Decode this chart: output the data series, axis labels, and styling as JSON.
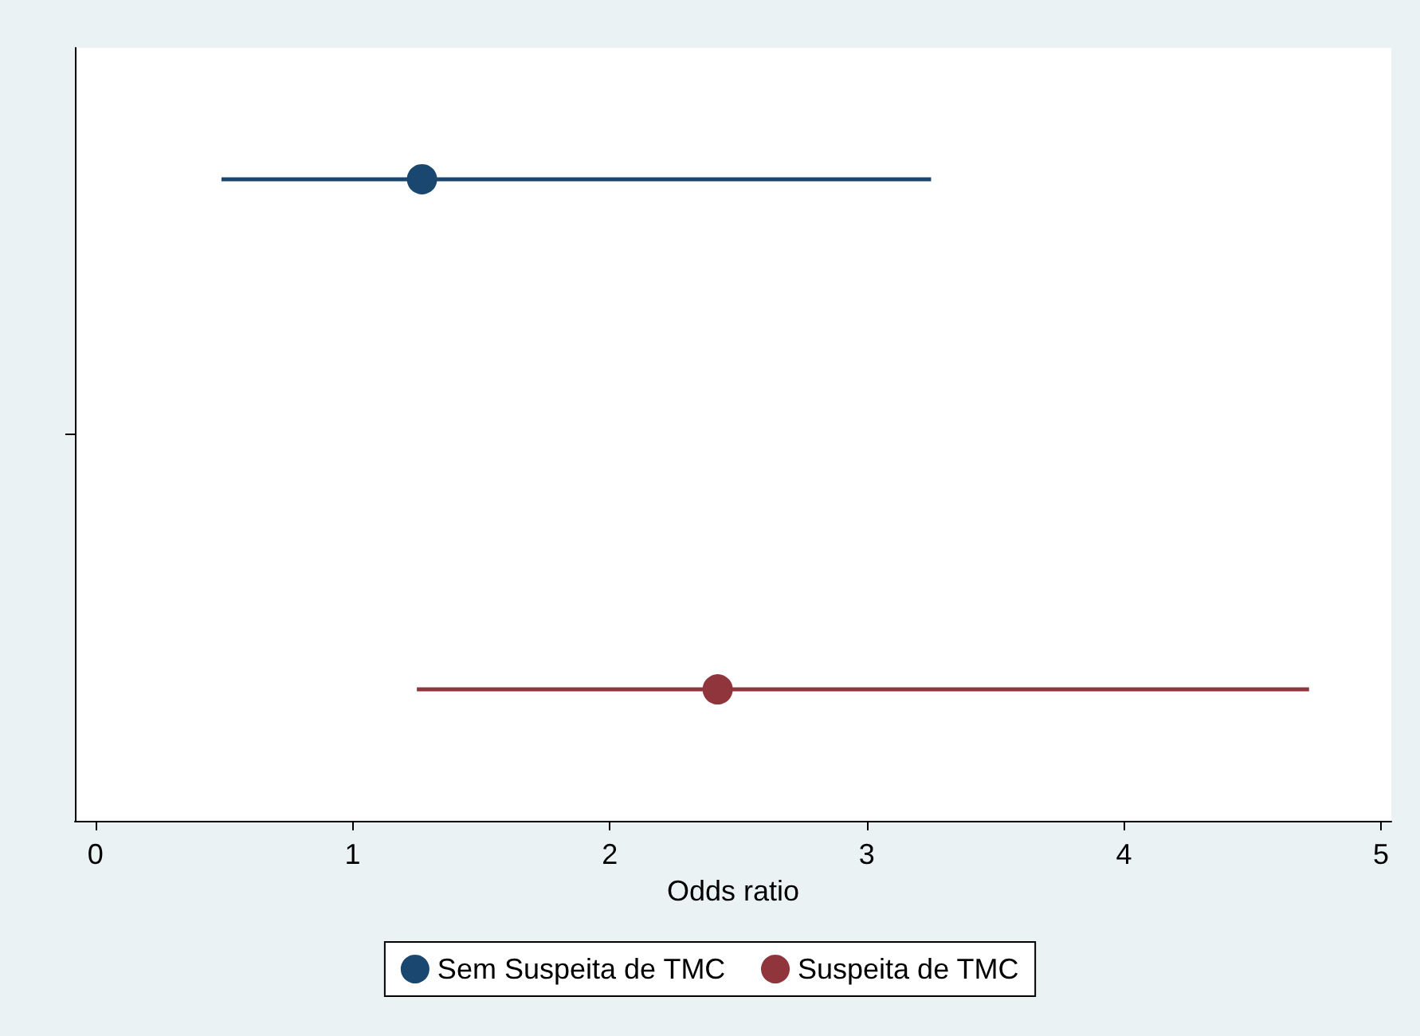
{
  "chart_data": {
    "type": "scatter",
    "orientation": "horizontal",
    "xlabel": "Odds ratio",
    "categories": [
      null
    ],
    "series": [
      {
        "name": "Sem Suspeita de TMC",
        "color": "#1a476f",
        "values": [
          1.27
        ],
        "errors": [
          [
            0.49,
            3.25
          ]
        ]
      },
      {
        "name": "Suspeita de TMC",
        "color": "#90353b",
        "values": [
          2.42
        ],
        "errors": [
          [
            1.25,
            4.72
          ]
        ]
      }
    ],
    "xlim": [
      -0.08,
      5.04
    ],
    "xticks": [
      0,
      1,
      2,
      3,
      4,
      5
    ],
    "grid": false,
    "legend": "bottom",
    "marker": "circle"
  }
}
